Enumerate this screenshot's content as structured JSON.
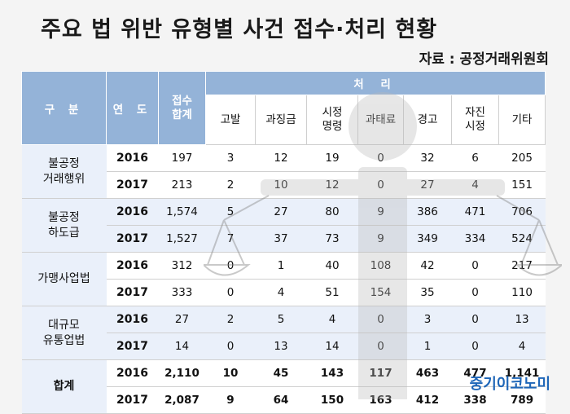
{
  "title": "주요 법 위반 유형별 사건 접수·처리 현황",
  "source": "자료 : 공정거래위원회",
  "logo": "중기이코노미",
  "headers": {
    "category": "구 분",
    "year": "연 도",
    "received": "접수\n합계",
    "processing": "처 리",
    "sub": [
      "고발",
      "과징금",
      "시정\n명령",
      "과태료",
      "경고",
      "자진\n시정",
      "기타"
    ]
  },
  "rows": [
    {
      "category": "불공정\n거래행위",
      "year": "2016",
      "received": "197",
      "values": [
        "3",
        "12",
        "19",
        "0",
        "32",
        "6",
        "205"
      ]
    },
    {
      "category": "",
      "year": "2017",
      "received": "213",
      "values": [
        "2",
        "10",
        "12",
        "0",
        "27",
        "4",
        "151"
      ]
    },
    {
      "category": "불공정\n하도급",
      "year": "2016",
      "received": "1,574",
      "values": [
        "5",
        "27",
        "80",
        "9",
        "386",
        "471",
        "706"
      ]
    },
    {
      "category": "",
      "year": "2017",
      "received": "1,527",
      "values": [
        "7",
        "37",
        "73",
        "9",
        "349",
        "334",
        "524"
      ]
    },
    {
      "category": "가맹사업법",
      "year": "2016",
      "received": "312",
      "values": [
        "0",
        "1",
        "40",
        "108",
        "42",
        "0",
        "217"
      ]
    },
    {
      "category": "",
      "year": "2017",
      "received": "333",
      "values": [
        "0",
        "4",
        "51",
        "154",
        "35",
        "0",
        "110"
      ]
    },
    {
      "category": "대규모\n유통업법",
      "year": "2016",
      "received": "27",
      "values": [
        "2",
        "5",
        "4",
        "0",
        "3",
        "0",
        "13"
      ]
    },
    {
      "category": "",
      "year": "2017",
      "received": "14",
      "values": [
        "0",
        "13",
        "14",
        "0",
        "1",
        "0",
        "4"
      ]
    },
    {
      "category": "합계",
      "year": "2016",
      "received": "2,110",
      "values": [
        "10",
        "45",
        "143",
        "117",
        "463",
        "477",
        "1,141"
      ]
    },
    {
      "category": "",
      "year": "2017",
      "received": "2,087",
      "values": [
        "9",
        "64",
        "150",
        "163",
        "412",
        "338",
        "789"
      ]
    }
  ]
}
